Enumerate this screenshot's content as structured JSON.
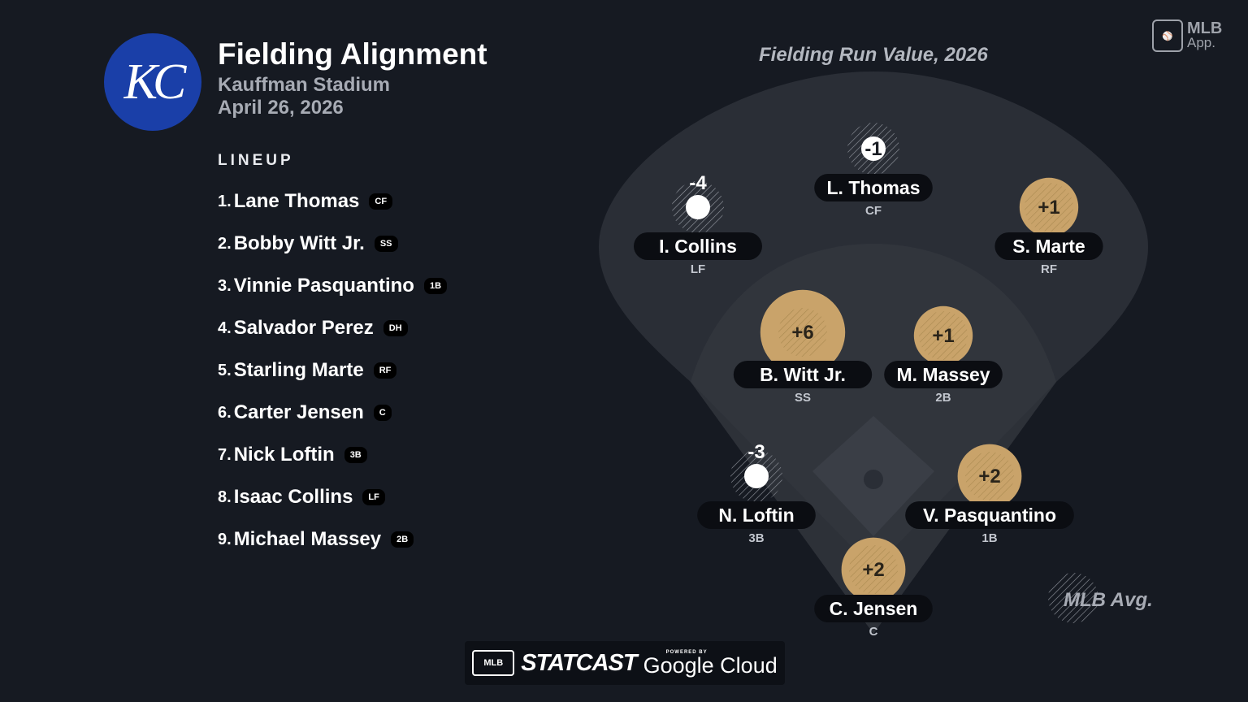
{
  "header": {
    "logo_text": "KC",
    "title": "Fielding Alignment",
    "venue": "Kauffman Stadium",
    "date": "April 26, 2026"
  },
  "lineup": {
    "heading": "LINEUP",
    "players": [
      {
        "num": "1.",
        "name": "Lane Thomas",
        "pos": "CF"
      },
      {
        "num": "2.",
        "name": "Bobby Witt Jr.",
        "pos": "SS"
      },
      {
        "num": "3.",
        "name": "Vinnie Pasquantino",
        "pos": "1B"
      },
      {
        "num": "4.",
        "name": "Salvador Perez",
        "pos": "DH"
      },
      {
        "num": "5.",
        "name": "Starling Marte",
        "pos": "RF"
      },
      {
        "num": "6.",
        "name": "Carter Jensen",
        "pos": "C"
      },
      {
        "num": "7.",
        "name": "Nick Loftin",
        "pos": "3B"
      },
      {
        "num": "8.",
        "name": "Isaac Collins",
        "pos": "LF"
      },
      {
        "num": "9.",
        "name": "Michael Massey",
        "pos": "2B"
      }
    ]
  },
  "field": {
    "title": "Fielding Run Value, 2026",
    "legend_label": "MLB Avg.",
    "colors": {
      "positive": "#c9a36a",
      "negative": "#ffffff",
      "label_bg": "#0b0d12"
    },
    "fielders": [
      {
        "label": "L. Thomas",
        "pos": "CF",
        "value": -1,
        "text": "-1"
      },
      {
        "label": "I. Collins",
        "pos": "LF",
        "value": -4,
        "text": "-4"
      },
      {
        "label": "S. Marte",
        "pos": "RF",
        "value": 1,
        "text": "+1"
      },
      {
        "label": "B. Witt Jr.",
        "pos": "SS",
        "value": 6,
        "text": "+6"
      },
      {
        "label": "M. Massey",
        "pos": "2B",
        "value": 1,
        "text": "+1"
      },
      {
        "label": "N. Loftin",
        "pos": "3B",
        "value": -3,
        "text": "-3"
      },
      {
        "label": "V. Pasquantino",
        "pos": "1B",
        "value": 2,
        "text": "+2"
      },
      {
        "label": "C. Jensen",
        "pos": "C",
        "value": 2,
        "text": "+2"
      }
    ]
  },
  "branding": {
    "mlb_app_line1": "MLB",
    "mlb_app_line2": "App.",
    "mlb_mark": "MLB",
    "statcast": "STATCAST",
    "powered_by": "POWERED BY",
    "google_cloud": "Google Cloud"
  }
}
